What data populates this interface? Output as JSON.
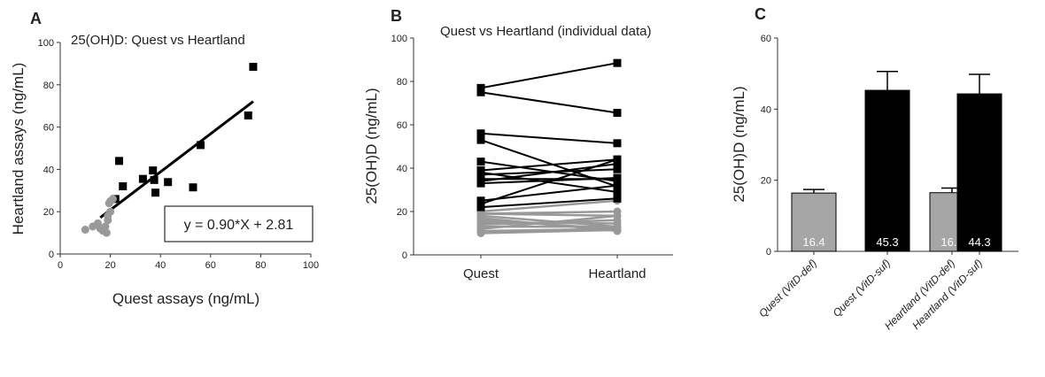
{
  "chart_data": [
    {
      "panel": "A",
      "type": "scatter",
      "title": "25(OH)D: Quest vs Heartland",
      "xlabel": "Quest assays (ng/mL)",
      "ylabel": "Heartland assays (ng/mL)",
      "xlim": [
        0,
        100
      ],
      "ylim": [
        0,
        100
      ],
      "xticks": [
        "0",
        "20",
        "40",
        "60",
        "80",
        "100"
      ],
      "yticks": [
        "0",
        "20",
        "40",
        "60",
        "80",
        "100"
      ],
      "equation": "y = 0.90*X  + 2.81",
      "fit": {
        "slope": 0.9,
        "intercept": 2.81,
        "x_range": [
          16,
          77
        ]
      },
      "series": [
        {
          "group": "VitD-suf",
          "color": "#000000",
          "marker": "square",
          "points": [
            [
              77,
              88.5
            ],
            [
              75,
              65.5
            ],
            [
              56,
              51.5
            ],
            [
              53,
              31.5
            ],
            [
              43,
              34
            ],
            [
              38,
              29
            ],
            [
              37,
              39.5
            ],
            [
              37.5,
              35
            ],
            [
              33,
              35.5
            ],
            [
              25,
              32
            ],
            [
              23.5,
              44
            ],
            [
              22,
              26
            ]
          ]
        },
        {
          "group": "VitD-def",
          "color": "#999999",
          "marker": "circle",
          "points": [
            [
              10,
              11.5
            ],
            [
              13,
              13
            ],
            [
              15,
              14.5
            ],
            [
              17,
              11
            ],
            [
              18,
              13
            ],
            [
              19,
              16
            ],
            [
              19,
              18
            ],
            [
              20,
              20
            ],
            [
              19.5,
              24
            ],
            [
              20,
              25
            ],
            [
              21,
              26
            ],
            [
              16,
              12
            ],
            [
              18.5,
              10
            ]
          ]
        }
      ]
    },
    {
      "panel": "B",
      "type": "line",
      "title": "Quest vs Heartland (individual data)",
      "ylabel": "25(OH)D (ng/mL)",
      "categories": [
        "Quest",
        "Heartland"
      ],
      "ylim": [
        0,
        100
      ],
      "yticks": [
        "0",
        "20",
        "40",
        "60",
        "80",
        "100"
      ],
      "series": [
        {
          "group": "VitD-suf",
          "color": "#000000",
          "marker": "square",
          "pairs": [
            [
              77,
              88.5
            ],
            [
              75,
              65.5
            ],
            [
              56,
              51.5
            ],
            [
              53,
              31.5
            ],
            [
              43,
              34
            ],
            [
              39,
              44
            ],
            [
              38,
              29
            ],
            [
              37,
              39.5
            ],
            [
              35,
              35
            ],
            [
              34,
              42
            ],
            [
              33,
              35.5
            ],
            [
              25,
              32
            ],
            [
              23.5,
              44
            ],
            [
              22,
              26
            ]
          ]
        },
        {
          "group": "VitD-def",
          "color": "#999999",
          "marker": "circle",
          "pairs": [
            [
              20,
              25
            ],
            [
              19,
              20
            ],
            [
              19,
              18
            ],
            [
              18,
              13
            ],
            [
              17,
              11
            ],
            [
              16,
              12
            ],
            [
              15,
              14.5
            ],
            [
              14,
              16
            ],
            [
              13,
              13
            ],
            [
              12,
              18
            ],
            [
              11,
              12
            ],
            [
              10,
              11.5
            ]
          ]
        }
      ]
    },
    {
      "panel": "C",
      "type": "bar",
      "ylabel": "25(OH)D (ng/mL)",
      "categories": [
        "Quest (VitD-def)",
        "Quest (VitD-suf)",
        "Heartland (VitD-def)",
        "Heartland (VitD-suf)"
      ],
      "values": [
        16.4,
        45.3,
        16.5,
        44.3
      ],
      "value_labels": [
        "16.4",
        "45.3",
        "16.5",
        "44.3"
      ],
      "errors": [
        1.0,
        5.3,
        1.3,
        5.5
      ],
      "colors": [
        "#a6a6a6",
        "#000000",
        "#a6a6a6",
        "#000000"
      ],
      "ylim": [
        0,
        60
      ],
      "yticks": [
        "0",
        "20",
        "40",
        "60"
      ]
    }
  ]
}
